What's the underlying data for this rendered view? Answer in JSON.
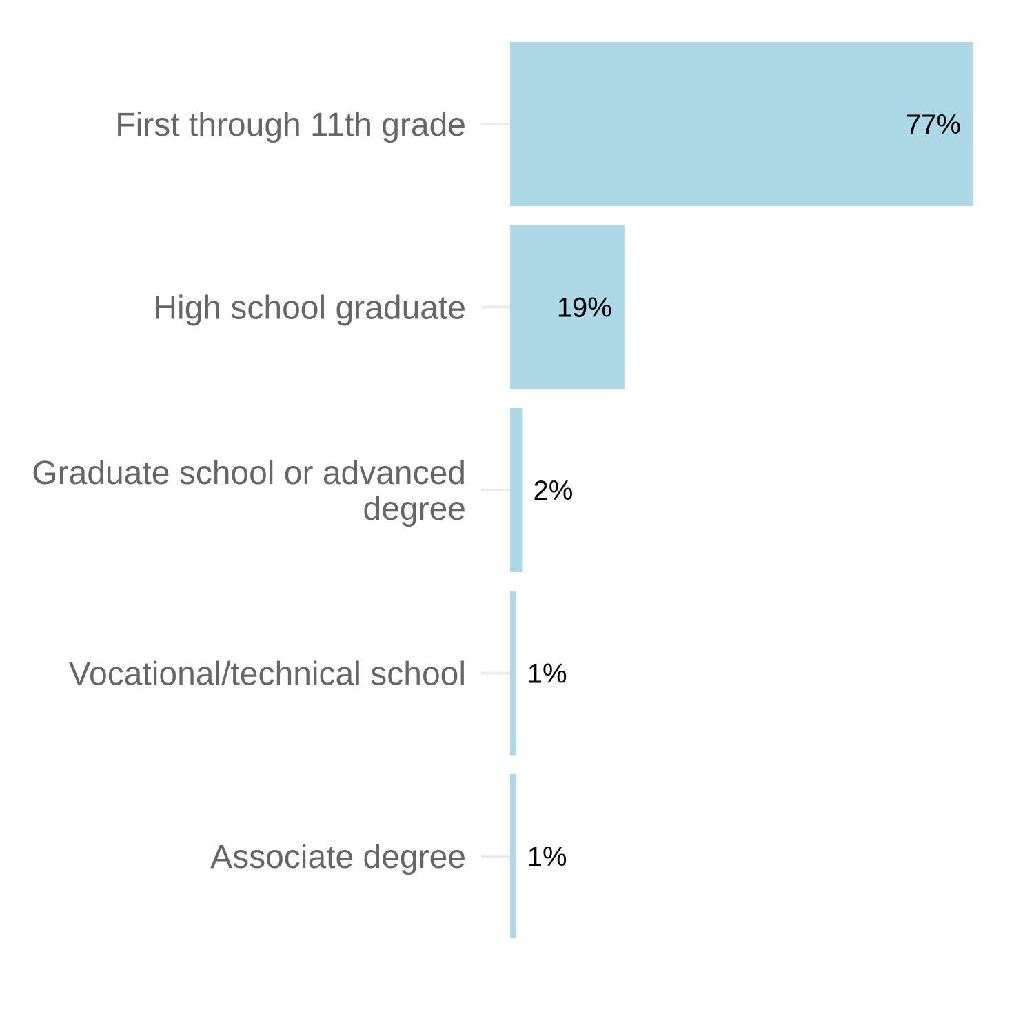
{
  "chart_data": {
    "type": "bar",
    "orientation": "horizontal",
    "categories": [
      "First through 11th grade",
      "High school graduate",
      "Graduate school or advanced degree",
      "Vocational/technical school",
      "Associate degree"
    ],
    "category_lines": [
      [
        "First through 11th grade"
      ],
      [
        "High school graduate"
      ],
      [
        "Graduate school or advanced",
        "degree"
      ],
      [
        "Vocational/technical school"
      ],
      [
        "Associate degree"
      ]
    ],
    "values": [
      77,
      19,
      2,
      1,
      1
    ],
    "value_labels": [
      "77%",
      "19%",
      "2%",
      "1%",
      "1%"
    ],
    "bar_color": "#add8e6",
    "tick_color": "#ebebeb",
    "label_color": "#666666",
    "value_label_color": "#000000",
    "xlim": [
      0,
      77
    ],
    "grid": false,
    "legend": "none",
    "title": "",
    "xlabel": "",
    "ylabel": ""
  }
}
